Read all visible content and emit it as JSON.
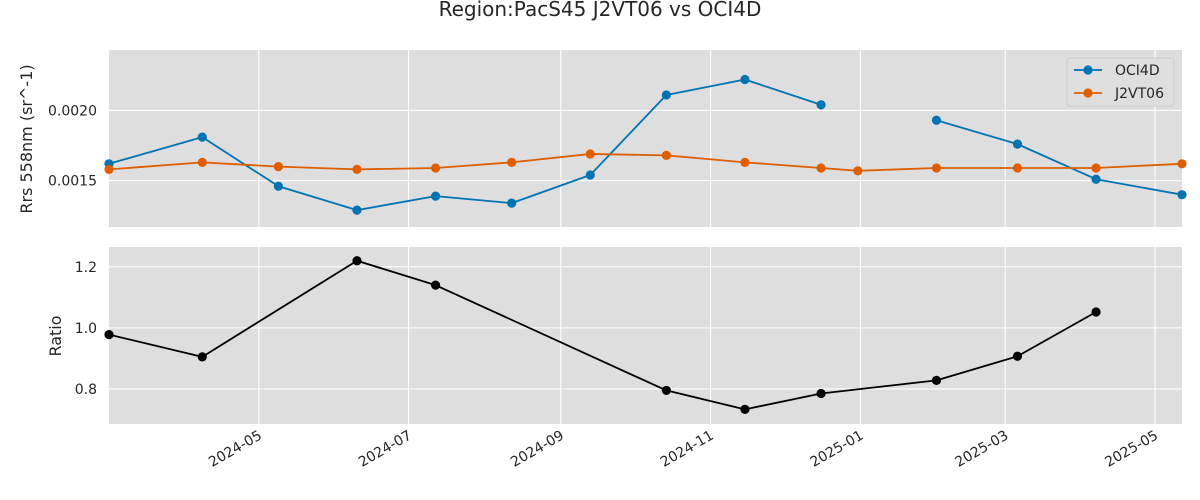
{
  "chart_data": {
    "title": "Region:PacS45 J2VT06 vs OCI4D",
    "colors": {
      "oci": "#0173b2",
      "j2": "#de5e00",
      "ratio": "#000000",
      "panel_bg": "#dedede",
      "grid": "#ffffff"
    },
    "x_ticks": [
      "2024-05",
      "2024-07",
      "2024-09",
      "2024-11",
      "2025-01",
      "2025-03",
      "2025-05"
    ],
    "xlim": [
      "2024-03-01",
      "2025-05-12"
    ],
    "panels": [
      {
        "type": "line",
        "ylabel": "Rrs 558nm (sr^-1)",
        "ylim": [
          0.00117,
          0.00243
        ],
        "y_ticks": [
          {
            "value": 0.0015,
            "label": "0.0015"
          },
          {
            "value": 0.002,
            "label": "0.0020"
          }
        ],
        "legend_position": "top-right",
        "series": [
          {
            "name": "OCI4D",
            "color_key": "oci",
            "points": [
              [
                "2024-03-01",
                0.00162
              ],
              [
                "2024-04-08",
                0.00181
              ],
              [
                "2024-05-09",
                0.00146
              ],
              [
                "2024-06-10",
                0.00129
              ],
              [
                "2024-07-12",
                0.00139
              ],
              [
                "2024-08-12",
                0.00134
              ],
              [
                "2024-09-13",
                0.00154
              ],
              [
                "2024-10-14",
                0.00211
              ],
              [
                "2024-11-15",
                0.00222
              ],
              [
                "2024-12-16",
                0.00204
              ],
              null,
              [
                "2025-02-01",
                0.00193
              ],
              [
                "2025-03-06",
                0.00176
              ],
              [
                "2025-04-07",
                0.00151
              ],
              [
                "2025-05-12",
                0.0014
              ]
            ]
          },
          {
            "name": "J2VT06",
            "color_key": "j2",
            "points": [
              [
                "2024-03-01",
                0.00158
              ],
              [
                "2024-04-08",
                0.00163
              ],
              [
                "2024-05-09",
                0.0016
              ],
              [
                "2024-06-10",
                0.00158
              ],
              [
                "2024-07-12",
                0.00159
              ],
              [
                "2024-08-12",
                0.00163
              ],
              [
                "2024-09-13",
                0.00169
              ],
              [
                "2024-10-14",
                0.00168
              ],
              [
                "2024-11-15",
                0.00163
              ],
              [
                "2024-12-16",
                0.00159
              ],
              [
                "2024-12-31",
                0.00157
              ],
              [
                "2025-02-01",
                0.00159
              ],
              [
                "2025-03-06",
                0.00159
              ],
              [
                "2025-04-07",
                0.00159
              ],
              [
                "2025-05-12",
                0.00162
              ]
            ]
          }
        ]
      },
      {
        "type": "line",
        "ylabel": "Ratio",
        "ylim": [
          0.685,
          1.265
        ],
        "y_ticks": [
          {
            "value": 0.8,
            "label": "0.8"
          },
          {
            "value": 1.0,
            "label": "1.0"
          },
          {
            "value": 1.2,
            "label": "1.2"
          }
        ],
        "series": [
          {
            "name": "",
            "color_key": "ratio",
            "points": [
              [
                "2024-03-01",
                0.978
              ],
              [
                "2024-04-08",
                0.905
              ],
              [
                "2024-06-10",
                1.22
              ],
              [
                "2024-07-12",
                1.14
              ],
              [
                "2024-10-14",
                0.795
              ],
              [
                "2024-11-15",
                0.733
              ],
              [
                "2024-12-16",
                0.785
              ],
              [
                "2025-02-01",
                0.828
              ],
              [
                "2025-03-06",
                0.907
              ],
              [
                "2025-04-07",
                1.052
              ]
            ]
          }
        ]
      }
    ]
  }
}
